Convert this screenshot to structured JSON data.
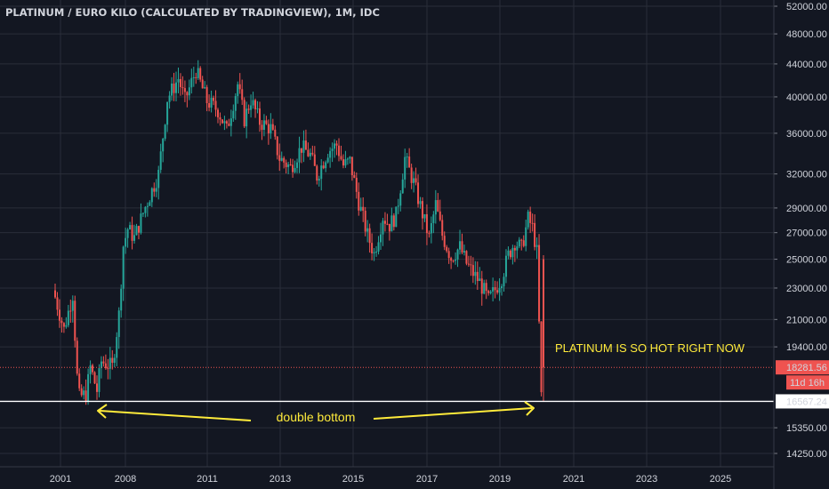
{
  "chart_data": {
    "type": "candlestick",
    "title": "PLATINUM / EURO KILO (CALCULATED BY TRADINGVIEW), 1M, IDC",
    "interval": "1M",
    "y_scale": "log",
    "grid": true,
    "colors": {
      "background": "#131722",
      "grid": "#2a2e39",
      "up": "#26a69a",
      "down": "#ef5350",
      "text": "#d1d4dc",
      "annotation": "#ffeb3b",
      "support_line": "#ffffff"
    },
    "y_ticks": [
      "52000.00",
      "48000.00",
      "44000.00",
      "40000.00",
      "36000.00",
      "32000.00",
      "29000.00",
      "27000.00",
      "25000.00",
      "23000.00",
      "21000.00",
      "19400.00",
      "15350.00",
      "14250.00"
    ],
    "x_ticks": [
      "2001",
      "2008",
      "2011",
      "2013",
      "2015",
      "2017",
      "2019",
      "2021",
      "2023",
      "2025"
    ],
    "last_price": "18281.56",
    "countdown": "11d 16h",
    "support_level": "16567.24",
    "support_value": 16567.24,
    "annotations": {
      "hot": "PLATINUM IS SO HOT RIGHT NOW",
      "double_bottom": "double bottom"
    },
    "points": [
      [
        "2001-01",
        22400
      ],
      [
        "2001-05",
        20400
      ],
      [
        "2001-09",
        22600
      ],
      [
        "2001-11",
        17800
      ],
      [
        "2001-12",
        16800
      ],
      [
        "2002-03",
        16900
      ],
      [
        "2002-05",
        18300
      ],
      [
        "2002-08",
        17100
      ],
      [
        "2002-10",
        18600
      ],
      [
        "2003-03",
        18300
      ],
      [
        "2003-06",
        21300
      ],
      [
        "2003-08",
        26000
      ],
      [
        "2003-10",
        27300
      ],
      [
        "2004-01",
        26600
      ],
      [
        "2004-06",
        29100
      ],
      [
        "2004-12",
        32000
      ],
      [
        "2005-04",
        39800
      ],
      [
        "2005-09",
        42200
      ],
      [
        "2005-12",
        39600
      ],
      [
        "2006-05",
        43200
      ],
      [
        "2006-10",
        39500
      ],
      [
        "2007-03",
        38500
      ],
      [
        "2007-07",
        36300
      ],
      [
        "2007-12",
        41500
      ],
      [
        "2008-03",
        37500
      ],
      [
        "2008-06",
        39700
      ],
      [
        "2008-10",
        37200
      ],
      [
        "2009-03",
        36500
      ],
      [
        "2009-07",
        33500
      ],
      [
        "2009-12",
        32600
      ],
      [
        "2010-05",
        34600
      ],
      [
        "2010-09",
        33800
      ],
      [
        "2010-12",
        31800
      ],
      [
        "2011-05",
        34200
      ],
      [
        "2011-09",
        34800
      ],
      [
        "2011-12",
        32800
      ],
      [
        "2012-03",
        33200
      ],
      [
        "2012-07",
        29500
      ],
      [
        "2012-11",
        26800
      ],
      [
        "2013-02",
        25400
      ],
      [
        "2013-06",
        28300
      ],
      [
        "2013-09",
        27600
      ],
      [
        "2013-12",
        28400
      ],
      [
        "2014-04",
        33500
      ],
      [
        "2014-08",
        31200
      ],
      [
        "2014-12",
        28500
      ],
      [
        "2015-03",
        26600
      ],
      [
        "2015-06",
        29300
      ],
      [
        "2015-09",
        26800
      ],
      [
        "2016-01",
        25100
      ],
      [
        "2016-05",
        25900
      ],
      [
        "2016-08",
        24700
      ],
      [
        "2016-11",
        24000
      ],
      [
        "2017-02",
        23400
      ],
      [
        "2017-06",
        22200
      ],
      [
        "2017-09",
        22900
      ],
      [
        "2017-12",
        23700
      ],
      [
        "2018-03",
        25300
      ],
      [
        "2018-06",
        26300
      ],
      [
        "2018-09",
        25800
      ],
      [
        "2018-12",
        28100
      ],
      [
        "2019-02",
        27400
      ],
      [
        "2019-04",
        25500
      ],
      [
        "2019-06",
        16800
      ],
      [
        "2019-07",
        18281.56
      ]
    ]
  }
}
